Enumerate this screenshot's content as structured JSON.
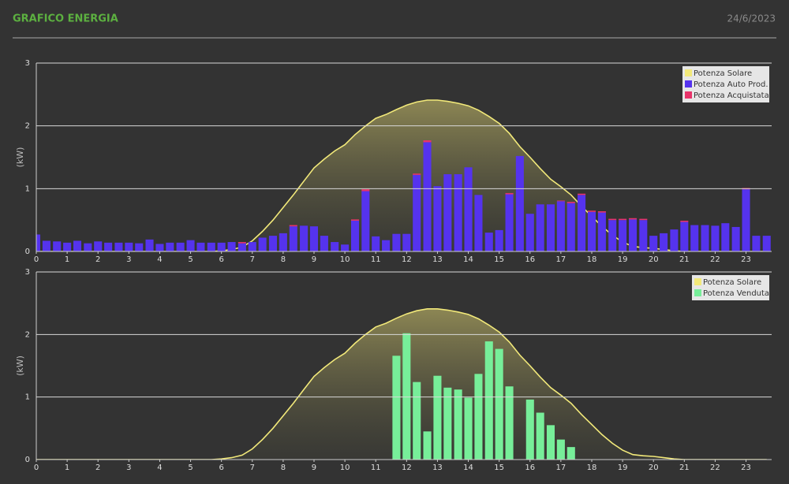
{
  "header": {
    "title": "GRAFICO ENERGIA",
    "date": "24/6/2023"
  },
  "chart_data": [
    {
      "type": "bar",
      "stacked": true,
      "ylabel": "(kW)",
      "ylim": [
        0,
        3
      ],
      "yticks": [
        0,
        1,
        2,
        3
      ],
      "xlim": [
        0,
        23.83
      ],
      "xticks": [
        0,
        1,
        2,
        3,
        4,
        5,
        6,
        7,
        8,
        9,
        10,
        11,
        12,
        13,
        14,
        15,
        16,
        17,
        18,
        19,
        20,
        21,
        22,
        23
      ],
      "grid": true,
      "legend": "upper right",
      "x": [
        0,
        0.33,
        0.67,
        1,
        1.33,
        1.67,
        2,
        2.33,
        2.67,
        3,
        3.33,
        3.67,
        4,
        4.33,
        4.67,
        5,
        5.33,
        5.67,
        6,
        6.33,
        6.67,
        7,
        7.33,
        7.67,
        8,
        8.33,
        8.67,
        9,
        9.33,
        9.67,
        10,
        10.33,
        10.67,
        11,
        11.33,
        11.67,
        12,
        12.33,
        12.67,
        13,
        13.33,
        13.67,
        14,
        14.33,
        14.67,
        15,
        15.33,
        15.67,
        16,
        16.33,
        16.67,
        17,
        17.33,
        17.67,
        18,
        18.33,
        18.67,
        19,
        19.33,
        19.67,
        20,
        20.33,
        20.67,
        21,
        21.33,
        21.67,
        22,
        22.33,
        22.67,
        23,
        23.33,
        23.67
      ],
      "series": [
        {
          "name": "Potenza Solare",
          "type": "line",
          "color": "#f2e97a",
          "values": [
            0,
            0,
            0,
            0,
            0,
            0,
            0,
            0,
            0,
            0,
            0,
            0,
            0,
            0,
            0,
            0,
            0,
            0,
            0.01,
            0.03,
            0.07,
            0.17,
            0.32,
            0.5,
            0.7,
            0.9,
            1.12,
            1.33,
            1.47,
            1.6,
            1.7,
            1.86,
            2.0,
            2.12,
            2.18,
            2.26,
            2.33,
            2.38,
            2.41,
            2.41,
            2.39,
            2.36,
            2.32,
            2.25,
            2.15,
            2.04,
            1.88,
            1.67,
            1.5,
            1.32,
            1.15,
            1.03,
            0.9,
            0.72,
            0.56,
            0.4,
            0.26,
            0.15,
            0.08,
            0.06,
            0.05,
            0.03,
            0.01,
            0,
            0,
            0,
            0,
            0,
            0,
            0,
            0,
            0
          ]
        },
        {
          "name": "Potenza Auto Prod.",
          "color": "#5533ee",
          "values": [
            0.27,
            0.17,
            0.16,
            0.14,
            0.17,
            0.13,
            0.16,
            0.14,
            0.14,
            0.14,
            0.13,
            0.19,
            0.12,
            0.14,
            0.14,
            0.18,
            0.14,
            0.14,
            0.14,
            0.15,
            0.13,
            0.15,
            0.22,
            0.25,
            0.29,
            0.4,
            0.41,
            0.4,
            0.25,
            0.15,
            0.11,
            0.49,
            0.96,
            0.24,
            0.18,
            0.28,
            0.28,
            1.22,
            1.74,
            1.04,
            1.23,
            1.23,
            1.34,
            0.9,
            0.3,
            0.34,
            0.91,
            1.52,
            0.6,
            0.75,
            0.75,
            0.8,
            0.77,
            0.9,
            0.63,
            0.62,
            0.5,
            0.5,
            0.51,
            0.5,
            0.25,
            0.29,
            0.35,
            0.47,
            0.42,
            0.42,
            0.41,
            0.45,
            0.39,
            0.99,
            0.25,
            0.25
          ]
        },
        {
          "name": "Potenza Acquistata",
          "color": "#e8336a",
          "values": [
            0,
            0,
            0,
            0,
            0,
            0,
            0,
            0,
            0,
            0,
            0,
            0,
            0,
            0,
            0,
            0,
            0,
            0,
            0,
            0,
            0.02,
            0,
            0,
            0,
            0,
            0.02,
            0,
            0,
            0,
            0,
            0,
            0.02,
            0.03,
            0,
            0,
            0,
            0,
            0.02,
            0.03,
            0,
            0,
            0,
            0,
            0,
            0,
            0,
            0.02,
            0,
            0,
            0,
            0,
            0.01,
            0.02,
            0.02,
            0.02,
            0.02,
            0.02,
            0.02,
            0.02,
            0.02,
            0,
            0,
            0,
            0.02,
            0,
            0,
            0,
            0,
            0,
            0.02,
            0,
            0
          ]
        }
      ]
    },
    {
      "type": "bar",
      "stacked": false,
      "ylabel": "(kW)",
      "ylim": [
        0,
        3
      ],
      "yticks": [
        0,
        1,
        2,
        3
      ],
      "xlim": [
        0,
        23.83
      ],
      "xticks": [
        0,
        1,
        2,
        3,
        4,
        5,
        6,
        7,
        8,
        9,
        10,
        11,
        12,
        13,
        14,
        15,
        16,
        17,
        18,
        19,
        20,
        21,
        22,
        23
      ],
      "grid": true,
      "legend": "upper right",
      "x": [
        0,
        0.33,
        0.67,
        1,
        1.33,
        1.67,
        2,
        2.33,
        2.67,
        3,
        3.33,
        3.67,
        4,
        4.33,
        4.67,
        5,
        5.33,
        5.67,
        6,
        6.33,
        6.67,
        7,
        7.33,
        7.67,
        8,
        8.33,
        8.67,
        9,
        9.33,
        9.67,
        10,
        10.33,
        10.67,
        11,
        11.33,
        11.67,
        12,
        12.33,
        12.67,
        13,
        13.33,
        13.67,
        14,
        14.33,
        14.67,
        15,
        15.33,
        15.67,
        16,
        16.33,
        16.67,
        17,
        17.33,
        17.67,
        18,
        18.33,
        18.67,
        19,
        19.33,
        19.67,
        20,
        20.33,
        20.67,
        21,
        21.33,
        21.67,
        22,
        22.33,
        22.67,
        23,
        23.33,
        23.67
      ],
      "series": [
        {
          "name": "Potenza Solare",
          "type": "line",
          "color": "#f2e97a",
          "values": [
            0,
            0,
            0,
            0,
            0,
            0,
            0,
            0,
            0,
            0,
            0,
            0,
            0,
            0,
            0,
            0,
            0,
            0,
            0.01,
            0.03,
            0.07,
            0.17,
            0.32,
            0.5,
            0.7,
            0.9,
            1.12,
            1.33,
            1.47,
            1.6,
            1.7,
            1.86,
            2.0,
            2.12,
            2.18,
            2.26,
            2.33,
            2.38,
            2.41,
            2.41,
            2.39,
            2.36,
            2.32,
            2.25,
            2.15,
            2.04,
            1.88,
            1.67,
            1.5,
            1.32,
            1.15,
            1.03,
            0.9,
            0.72,
            0.56,
            0.4,
            0.26,
            0.15,
            0.08,
            0.06,
            0.05,
            0.03,
            0.01,
            0,
            0,
            0,
            0,
            0,
            0,
            0,
            0,
            0
          ]
        },
        {
          "name": "Potenza Venduta",
          "color": "#77ee99",
          "values": [
            0,
            0,
            0,
            0,
            0,
            0,
            0,
            0,
            0,
            0,
            0,
            0,
            0,
            0,
            0,
            0,
            0,
            0,
            0,
            0,
            0,
            0,
            0,
            0,
            0,
            0,
            0,
            0,
            0,
            0,
            0,
            0,
            0,
            0,
            0,
            1.66,
            2.02,
            1.24,
            0.45,
            1.34,
            1.15,
            1.12,
            0.99,
            1.37,
            1.89,
            1.77,
            1.17,
            0,
            0.96,
            0.75,
            0.55,
            0.32,
            0.2,
            0,
            0,
            0,
            0,
            0,
            0,
            0,
            0,
            0,
            0,
            0,
            0,
            0,
            0,
            0,
            0,
            0,
            0,
            0
          ]
        }
      ]
    }
  ]
}
